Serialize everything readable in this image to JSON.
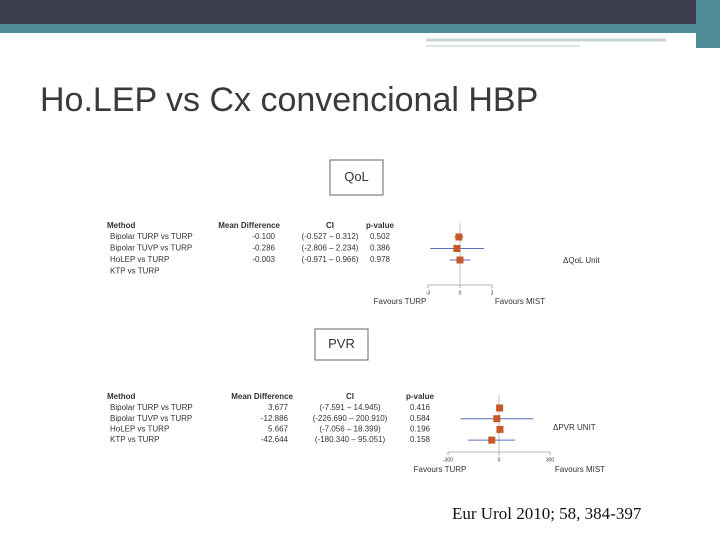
{
  "slide_title": "Ho.LEP vs Cx convencional HBP",
  "citation": "Eur Urol 2010; 58, 384-397",
  "chart_data": [
    {
      "type": "forest",
      "title": "QoL",
      "column_headers": [
        "Method",
        "Mean Difference",
        "CI",
        "p-value"
      ],
      "categories": [
        "Bipolar TURP vs TURP",
        "Bipolar TUVP vs TURP",
        "HoLEP vs TURP",
        "KTP vs TURP"
      ],
      "values": [
        -0.1,
        -0.286,
        -0.003,
        null
      ],
      "value_labels": [
        "-0.100",
        "-0.286",
        "-0.003",
        null
      ],
      "ci_lower": [
        -0.527,
        -2.806,
        -0.971,
        null
      ],
      "ci_upper": [
        0.312,
        2.234,
        0.966,
        null
      ],
      "ci_labels": [
        "(-0.527 – 0.312)",
        "(-2.806 – 2.234)",
        "(-0.971 – 0.966)",
        null
      ],
      "p_values": [
        0.502,
        0.386,
        0.978,
        null
      ],
      "xlim": [
        -3,
        3
      ],
      "xticks": [
        -3,
        0,
        3
      ],
      "x_label_left": "Favours TURP",
      "x_label_right": "Favours MIST",
      "axis_label": "ΔQoL Unit",
      "color": "#c8582a",
      "ci_color": "#5a6fb8"
    },
    {
      "type": "forest",
      "title": "PVR",
      "column_headers": [
        "Method",
        "Mean Difference",
        "CI",
        "p-value"
      ],
      "categories": [
        "Bipolar TURP vs TURP",
        "Bipolar TUVP vs TURP",
        "HoLEP vs TURP",
        "KTP vs TURP"
      ],
      "values": [
        3.677,
        -12.886,
        5.667,
        -42.644
      ],
      "ci_lower": [
        -7.591,
        -226.69,
        -7.056,
        -180.34
      ],
      "ci_upper": [
        14.945,
        200.91,
        18.399,
        95.051
      ],
      "ci_labels": [
        "(-7.591 – 14.945)",
        "(-226.690 – 200.910)",
        "(-7.056 – 18.399)",
        "(-180.340 – 95.051)"
      ],
      "p_values": [
        0.416,
        0.584,
        0.196,
        0.158
      ],
      "xlim": [
        -300,
        300
      ],
      "xticks": [
        -300,
        0,
        300
      ],
      "x_label_left": "Favours TURP",
      "x_label_right": "Favours MIST",
      "axis_label": "ΔPVR UNIT",
      "color": "#c8582a",
      "ci_color": "#5a6fb8"
    }
  ]
}
